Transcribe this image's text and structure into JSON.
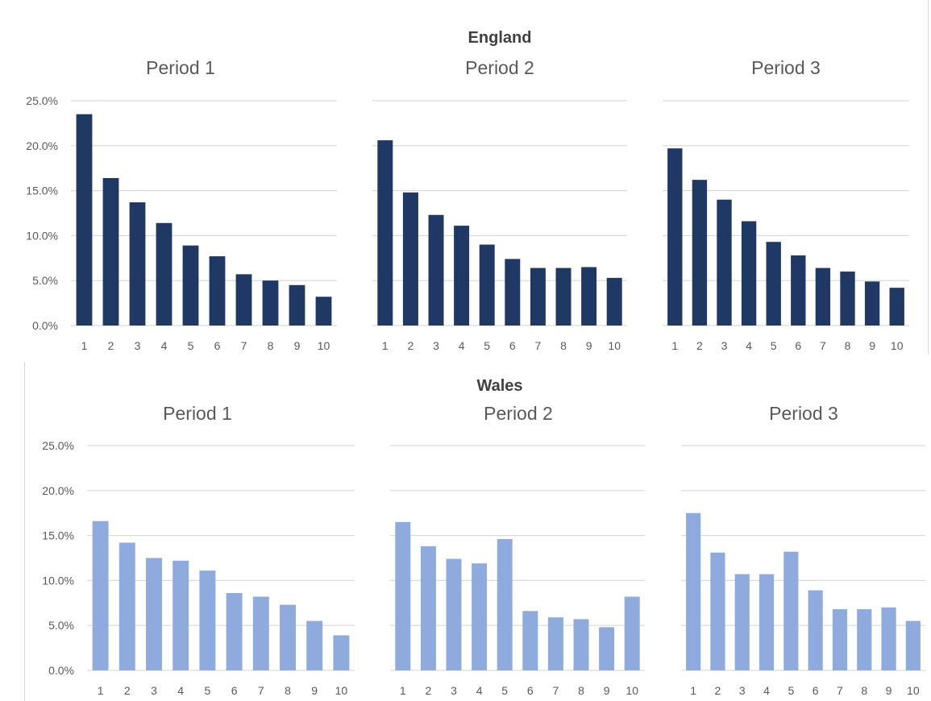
{
  "colors": {
    "england": "#1f3864",
    "wales": "#8faadc",
    "grid": "#d9d9d9",
    "text": "#595959"
  },
  "england": {
    "title": "England"
  },
  "wales": {
    "title": "Wales"
  },
  "chart_data": [
    {
      "type": "bar",
      "group": "England",
      "title": "Period 1",
      "categories": [
        "1",
        "2",
        "3",
        "4",
        "5",
        "6",
        "7",
        "8",
        "9",
        "10"
      ],
      "values": [
        23.5,
        16.4,
        13.7,
        11.4,
        8.9,
        7.7,
        5.7,
        5.0,
        4.5,
        3.2
      ],
      "ylim": [
        0,
        25
      ],
      "yticks": [
        "0.0%",
        "5.0%",
        "10.0%",
        "15.0%",
        "20.0%",
        "25.0%"
      ],
      "show_y_labels": true,
      "grid": true
    },
    {
      "type": "bar",
      "group": "England",
      "title": "Period 2",
      "categories": [
        "1",
        "2",
        "3",
        "4",
        "5",
        "6",
        "7",
        "8",
        "9",
        "10"
      ],
      "values": [
        20.6,
        14.8,
        12.3,
        11.1,
        9.0,
        7.4,
        6.4,
        6.4,
        6.5,
        5.3
      ],
      "ylim": [
        0,
        25
      ],
      "show_y_labels": false,
      "grid": true
    },
    {
      "type": "bar",
      "group": "England",
      "title": "Period 3",
      "categories": [
        "1",
        "2",
        "3",
        "4",
        "5",
        "6",
        "7",
        "8",
        "9",
        "10"
      ],
      "values": [
        19.7,
        16.2,
        14.0,
        11.6,
        9.3,
        7.8,
        6.4,
        6.0,
        4.9,
        4.2
      ],
      "ylim": [
        0,
        25
      ],
      "show_y_labels": false,
      "grid": true
    },
    {
      "type": "bar",
      "group": "Wales",
      "title": "Period 1",
      "categories": [
        "1",
        "2",
        "3",
        "4",
        "5",
        "6",
        "7",
        "8",
        "9",
        "10"
      ],
      "values": [
        16.6,
        14.2,
        12.5,
        12.2,
        11.1,
        8.6,
        8.2,
        7.3,
        5.5,
        3.9
      ],
      "ylim": [
        0,
        25
      ],
      "yticks": [
        "0.0%",
        "5.0%",
        "10.0%",
        "15.0%",
        "20.0%",
        "25.0%"
      ],
      "show_y_labels": true,
      "grid": true
    },
    {
      "type": "bar",
      "group": "Wales",
      "title": "Period 2",
      "categories": [
        "1",
        "2",
        "3",
        "4",
        "5",
        "6",
        "7",
        "8",
        "9",
        "10"
      ],
      "values": [
        16.5,
        13.8,
        12.4,
        11.9,
        14.6,
        6.6,
        5.9,
        5.7,
        4.8,
        8.2
      ],
      "ylim": [
        0,
        25
      ],
      "show_y_labels": false,
      "grid": true
    },
    {
      "type": "bar",
      "group": "Wales",
      "title": "Period 3",
      "categories": [
        "1",
        "2",
        "3",
        "4",
        "5",
        "6",
        "7",
        "8",
        "9",
        "10"
      ],
      "values": [
        17.5,
        13.1,
        10.7,
        10.7,
        13.2,
        8.9,
        6.8,
        6.8,
        7.0,
        5.5
      ],
      "ylim": [
        0,
        25
      ],
      "show_y_labels": false,
      "grid": true
    }
  ]
}
